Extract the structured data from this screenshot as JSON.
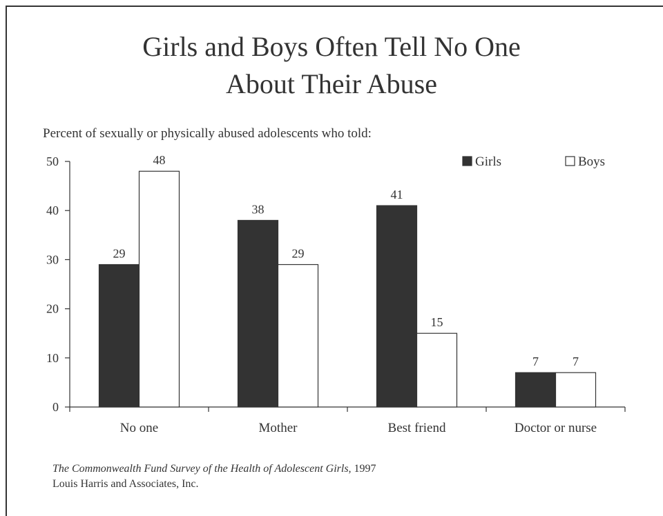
{
  "chart_data": {
    "type": "bar",
    "title_lines": [
      "Girls and Boys Often Tell No One",
      "About Their Abuse"
    ],
    "subtitle": "Percent of sexually or physically abused adolescents who told:",
    "categories": [
      "No one",
      "Mother",
      "Best friend",
      "Doctor or nurse"
    ],
    "series": [
      {
        "name": "Girls",
        "values": [
          29,
          38,
          41,
          7
        ],
        "color": "#333333"
      },
      {
        "name": "Boys",
        "values": [
          48,
          29,
          15,
          7
        ],
        "color": "#ffffff"
      }
    ],
    "ylim": [
      0,
      50
    ],
    "yticks": [
      0,
      10,
      20,
      30,
      40,
      50
    ],
    "legend_position": "top-right",
    "grid": false
  },
  "source": {
    "line1_italic": "The Commonwealth Fund Survey of the Health of Adolescent Girls,",
    "line1_year": " 1997",
    "line2": "Louis Harris and Associates, Inc."
  }
}
